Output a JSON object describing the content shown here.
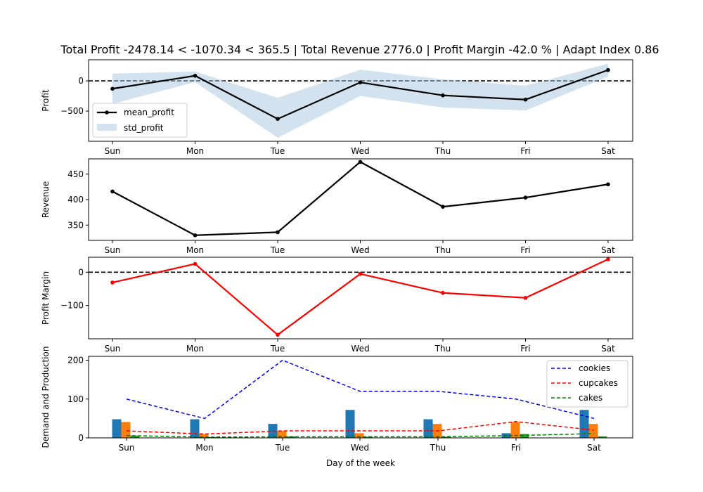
{
  "chart_data": [
    {
      "type": "line",
      "title": "Total Profit -2478.14 < -1070.34 < 365.5 | Total Revenue 2776.0 | Profit Margin -42.0 % | Adapt Index 0.86",
      "xlabel": "",
      "ylabel": "Profit",
      "categories": [
        "Sun",
        "Mon",
        "Tue",
        "Wed",
        "Thu",
        "Fri",
        "Sat"
      ],
      "ylim": [
        -1000,
        350
      ],
      "yticks": [
        -500,
        0
      ],
      "ytick_labels": [
        "−500",
        "0"
      ],
      "reference_line": 0,
      "series": [
        {
          "name": "mean_profit",
          "values": [
            -130,
            85,
            -630,
            -25,
            -240,
            -310,
            180
          ],
          "color": "#000000",
          "marker": true
        }
      ],
      "band": {
        "name": "std_profit",
        "lower": [
          -380,
          -20,
          -940,
          -250,
          -440,
          -490,
          70
        ],
        "upper": [
          120,
          155,
          -280,
          185,
          25,
          -80,
          285
        ],
        "color": "#a6c8e0"
      },
      "legend": "lower-left"
    },
    {
      "type": "line",
      "title": "",
      "xlabel": "",
      "ylabel": "Revenue",
      "categories": [
        "Sun",
        "Mon",
        "Tue",
        "Wed",
        "Thu",
        "Fri",
        "Sat"
      ],
      "ylim": [
        320,
        480
      ],
      "yticks": [
        350,
        400,
        450
      ],
      "ytick_labels": [
        "350",
        "400",
        "450"
      ],
      "series": [
        {
          "values": [
            416,
            330,
            336,
            474,
            386,
            404,
            430
          ],
          "color": "#000000",
          "marker": true
        }
      ]
    },
    {
      "type": "line",
      "title": "",
      "xlabel": "",
      "ylabel": "Profit Margin",
      "categories": [
        "Sun",
        "Mon",
        "Tue",
        "Wed",
        "Thu",
        "Fri",
        "Sat"
      ],
      "ylim": [
        -200,
        45
      ],
      "yticks": [
        -100,
        0
      ],
      "ytick_labels": [
        "−100",
        "0"
      ],
      "reference_line": 0,
      "series": [
        {
          "values": [
            -31,
            25,
            -188,
            -5,
            -62,
            -77,
            39
          ],
          "color": "#ff0000",
          "marker": true
        }
      ]
    },
    {
      "type": "bar",
      "title": "",
      "xlabel": "Day of the week",
      "ylabel": "Demand and Production",
      "categories": [
        "Sun",
        "Mon",
        "Tue",
        "Wed",
        "Thu",
        "Fri",
        "Sat"
      ],
      "ylim": [
        0,
        210
      ],
      "yticks": [
        0,
        100,
        200
      ],
      "ytick_labels": [
        "0",
        "100",
        "200"
      ],
      "bar_series": [
        {
          "values": [
            48,
            48,
            36,
            72,
            48,
            12,
            72
          ],
          "color": "#1f77b4"
        },
        {
          "values": [
            41,
            10,
            18,
            12,
            36,
            41,
            36
          ],
          "color": "#ff7f0e"
        },
        {
          "values": [
            6,
            2,
            4,
            3,
            3,
            10,
            4
          ],
          "color": "#2ca02c"
        }
      ],
      "line_series": [
        {
          "name": "cookies",
          "values": [
            100,
            50,
            200,
            120,
            120,
            100,
            50
          ],
          "color": "#0000ff"
        },
        {
          "name": "cupcakes",
          "values": [
            18,
            10,
            18,
            18,
            18,
            42,
            20
          ],
          "color": "#ff0000"
        },
        {
          "name": "cakes",
          "values": [
            6,
            2,
            3,
            3,
            3,
            6,
            11
          ],
          "color": "#008000"
        }
      ],
      "legend": "top-right"
    }
  ]
}
